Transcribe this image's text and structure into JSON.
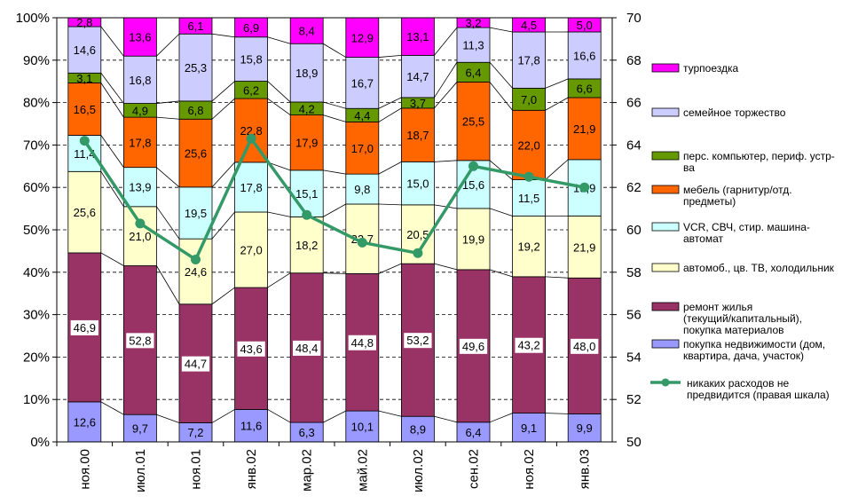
{
  "chart_data": {
    "type": "bar",
    "stacked": true,
    "categories": [
      "ноя.00",
      "июл.01",
      "ноя.01",
      "янв.02",
      "мар.02",
      "май.02",
      "июл.02",
      "сен.02",
      "ноя.02",
      "янв.03"
    ],
    "series": [
      {
        "name": "покупка недвижимости (дом, квартира, дача, участок)",
        "color": "#9999ff",
        "values": [
          12.6,
          9.7,
          7.2,
          11.6,
          6.3,
          10.1,
          8.9,
          6.4,
          9.1,
          9.9
        ]
      },
      {
        "name": "ремонт жилья (текущий/капитальный), покупка материалов",
        "color": "#993366",
        "values": [
          46.9,
          52.8,
          44.7,
          43.6,
          48.4,
          44.8,
          53.2,
          49.6,
          43.2,
          48.0
        ]
      },
      {
        "name": "автомоб., цв. ТВ, холодильник",
        "color": "#ffffcc",
        "values": [
          25.6,
          21.0,
          24.6,
          27.0,
          18.2,
          22.7,
          20.5,
          19.9,
          19.2,
          21.9
        ]
      },
      {
        "name": "VCR, СВЧ, стир. машина-автомат",
        "color": "#ccffff",
        "values": [
          11.4,
          13.9,
          19.5,
          17.8,
          15.1,
          9.8,
          15.0,
          15.6,
          11.5,
          19.9
        ]
      },
      {
        "name": "мебель (гарнитур/отд. предметы)",
        "color": "#ff6600",
        "values": [
          16.5,
          17.8,
          25.6,
          22.8,
          17.9,
          17.0,
          18.7,
          25.5,
          22.0,
          21.9
        ]
      },
      {
        "name": "перс. компьютер, периф. устр-ва",
        "color": "#669900",
        "values": [
          3.1,
          4.9,
          6.8,
          6.2,
          4.2,
          4.4,
          3.7,
          6.4,
          7.0,
          6.6
        ]
      },
      {
        "name": "семейное торжество",
        "color": "#ccccff",
        "values": [
          14.6,
          16.8,
          25.3,
          15.8,
          18.9,
          16.7,
          14.7,
          11.3,
          17.8,
          16.6
        ]
      },
      {
        "name": "турпоездка",
        "color": "#ff00ff",
        "values": [
          2.8,
          13.6,
          6.1,
          6.9,
          8.4,
          12.9,
          13.1,
          3.2,
          4.5,
          5.0
        ]
      }
    ],
    "line": {
      "name": "никаких расходов не предвидится (правая шкала)",
      "color": "#339966",
      "axis": "right",
      "values": [
        64.2,
        60.3,
        58.6,
        64.3,
        60.7,
        59.4,
        58.9,
        63.0,
        62.5,
        62.0
      ]
    },
    "y_left": {
      "min": 0,
      "max": 100,
      "step": 10,
      "suffix": "%",
      "ticks": [
        "0%",
        "10%",
        "20%",
        "30%",
        "40%",
        "50%",
        "60%",
        "70%",
        "80%",
        "90%",
        "100%"
      ]
    },
    "y_right": {
      "min": 50,
      "max": 70,
      "step": 2,
      "ticks": [
        "50",
        "52",
        "54",
        "56",
        "58",
        "60",
        "62",
        "64",
        "66",
        "68",
        "70"
      ]
    },
    "grid": "dashed horizontal",
    "legend_position": "right",
    "legend_order": [
      "турпоездка",
      "семейное торжество",
      "перс. компьютер, периф. устр-ва",
      "мебель (гарнитур/отд. предметы)",
      "VCR, СВЧ, стир. машина-автомат",
      "автомоб., цв. ТВ, холодильник",
      "ремонт жилья (текущий/капитальный), покупка материалов",
      "покупка недвижимости (дом, квартира, дача, участок)",
      "никаких расходов не предвидится (правая шкала)"
    ]
  }
}
